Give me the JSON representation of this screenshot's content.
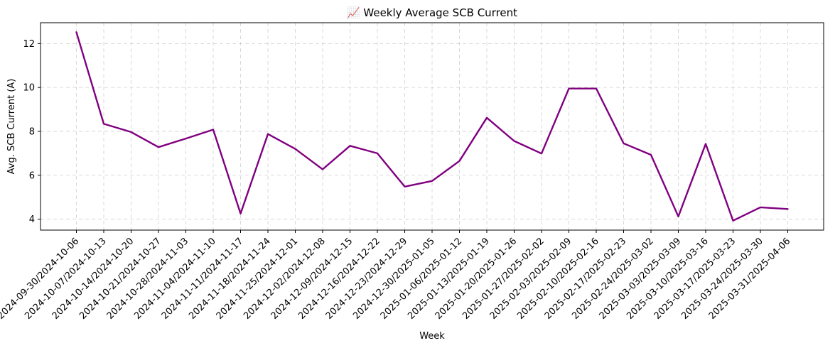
{
  "chart_data": {
    "type": "line",
    "title": "📈 Weekly Average SCB Current",
    "xlabel": "Week",
    "ylabel": "Avg. SCB Current (A)",
    "ylim": [
      3.5,
      12.95
    ],
    "yticks": [
      4,
      6,
      8,
      10,
      12
    ],
    "grid": true,
    "line_color": "#800080",
    "categories": [
      "2024-09-30/2024-10-06",
      "2024-10-07/2024-10-13",
      "2024-10-14/2024-10-20",
      "2024-10-21/2024-10-27",
      "2024-10-28/2024-11-03",
      "2024-11-04/2024-11-10",
      "2024-11-11/2024-11-17",
      "2024-11-18/2024-11-24",
      "2024-11-25/2024-12-01",
      "2024-12-02/2024-12-08",
      "2024-12-09/2024-12-15",
      "2024-12-16/2024-12-22",
      "2024-12-23/2024-12-29",
      "2024-12-30/2025-01-05",
      "2025-01-06/2025-01-12",
      "2025-01-13/2025-01-19",
      "2025-01-20/2025-01-26",
      "2025-01-27/2025-02-02",
      "2025-02-03/2025-02-09",
      "2025-02-10/2025-02-16",
      "2025-02-17/2025-02-23",
      "2025-02-24/2025-03-02",
      "2025-03-03/2025-03-09",
      "2025-03-10/2025-03-16",
      "2025-03-17/2025-03-23",
      "2025-03-24/2025-03-30",
      "2025-03-31/2025-04-06"
    ],
    "values": [
      12.52,
      8.34,
      7.97,
      7.28,
      7.67,
      8.08,
      4.25,
      7.88,
      7.2,
      6.27,
      7.34,
      7.0,
      5.48,
      5.74,
      6.65,
      8.62,
      7.56,
      6.99,
      9.95,
      9.95,
      7.45,
      6.93,
      4.12,
      7.43,
      3.93,
      4.54,
      4.46
    ]
  }
}
